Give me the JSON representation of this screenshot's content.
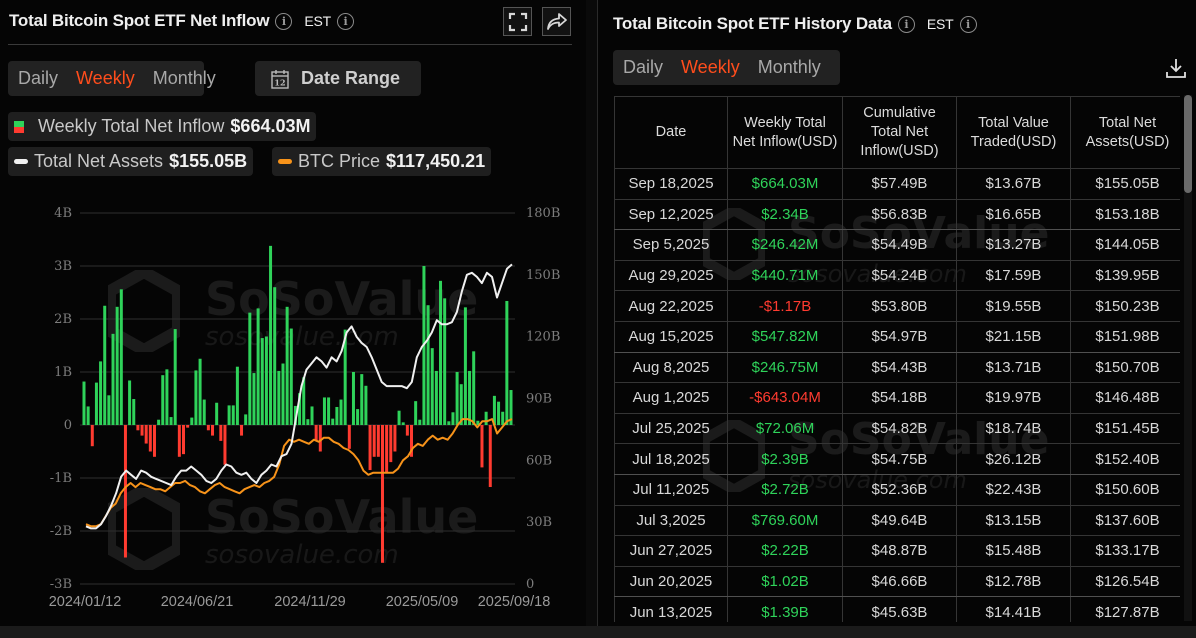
{
  "left_panel": {
    "title": "Total Bitcoin Spot ETF Net Inflow",
    "timezone": "EST",
    "icons": {
      "info": "info-icon",
      "fullscreen": "fullscreen-icon",
      "share": "share-icon"
    },
    "period_tabs": [
      {
        "label": "Daily",
        "active": false
      },
      {
        "label": "Weekly",
        "active": true
      },
      {
        "label": "Monthly",
        "active": false
      }
    ],
    "date_range": {
      "label": "Date Range",
      "icon": "calendar-icon",
      "icon_text": "12"
    },
    "legend": {
      "inflow": {
        "label": "Weekly Total Net Inflow",
        "value": "$664.03M"
      },
      "assets": {
        "label": "Total Net Assets",
        "value": "$155.05B",
        "color": "#f5f5f5"
      },
      "btc": {
        "label": "BTC Price",
        "value": "$117,450.21",
        "color": "#f7931a"
      }
    },
    "watermark": {
      "brand": "SoSoValue",
      "url": "sosovalue.com"
    }
  },
  "chart_data": {
    "type": "bar",
    "title": "Total Bitcoin Spot ETF Net Inflow",
    "xlabel": "",
    "ylabel_left": "Weekly Total Net Inflow (USD)",
    "ylabel_right": "Total Net Assets (USD)",
    "left_ticks": [
      "4B",
      "3B",
      "2B",
      "1B",
      "0",
      "-1B",
      "-2B",
      "-3B"
    ],
    "right_ticks": [
      "180B",
      "150B",
      "120B",
      "90B",
      "60B",
      "30B",
      "0"
    ],
    "x_ticks": [
      "2024/01/12",
      "2024/06/21",
      "2024/11/29",
      "2025/05/09",
      "2025/09/18"
    ],
    "ylim_left": [
      -3,
      4
    ],
    "ylim_right": [
      0,
      180
    ],
    "grid": true,
    "colors": {
      "positive": "#2fd35a",
      "negative": "#ff3b30",
      "assets_line": "#f0f0f0",
      "btc_line": "#f7931a"
    },
    "series": [
      {
        "name": "Weekly Total Net Inflow (B USD)",
        "type": "bar",
        "values": [
          0.82,
          0.35,
          -0.4,
          0.8,
          1.2,
          2.25,
          0.56,
          1.72,
          2.23,
          2.56,
          -2.5,
          0.84,
          0.49,
          -0.1,
          -0.2,
          -0.35,
          -0.5,
          -0.6,
          0.1,
          0.94,
          1.05,
          0.15,
          1.81,
          -0.6,
          -0.55,
          -0.05,
          0.14,
          1.03,
          1.25,
          0.48,
          -0.1,
          -0.2,
          0.42,
          -0.3,
          -0.75,
          0.37,
          0.37,
          1.1,
          -0.2,
          0.2,
          2.12,
          0.98,
          2.2,
          1.64,
          1.67,
          3.38,
          2.6,
          1.02,
          1.16,
          2.23,
          1.82,
          0.36,
          0.6,
          0.9,
          0.11,
          0.35,
          -0.3,
          -0.5,
          0.52,
          0.52,
          0.12,
          0.34,
          0.48,
          1.8,
          -0.45,
          1.0,
          0.3,
          0.96,
          0.74,
          -0.85,
          -0.6,
          -0.6,
          -2.6,
          -0.9,
          -0.7,
          -0.5,
          0.27,
          0.05,
          -0.2,
          -0.6,
          0.45,
          0.1,
          3.0,
          2.26,
          1.45,
          1.02,
          2.72,
          2.39,
          0.07,
          0.24,
          1.0,
          0.77,
          2.22,
          1.02,
          1.39,
          0.08,
          -0.8,
          0.25,
          -1.17,
          0.55,
          0.44,
          0.25,
          2.34,
          0.66
        ]
      },
      {
        "name": "Total Net Assets (B USD)",
        "type": "line",
        "axis": "right",
        "values": [
          28,
          27,
          27,
          29,
          33,
          38,
          44,
          52,
          55,
          53,
          51,
          55,
          54,
          52,
          51,
          50,
          49,
          48,
          52,
          55,
          55,
          57,
          55,
          53,
          50,
          49,
          51,
          55,
          58,
          57,
          54,
          53,
          54,
          51,
          49,
          53,
          55,
          58,
          57,
          62,
          63,
          68,
          82,
          96,
          104,
          107,
          110,
          108,
          105,
          110,
          108,
          113,
          122,
          125,
          120,
          117,
          115,
          110,
          104,
          98,
          96,
          96,
          96,
          96,
          95,
          98,
          110,
          115,
          118,
          122,
          128,
          126,
          126,
          127,
          132,
          142,
          150,
          151,
          149,
          146,
          151,
          149,
          139,
          146,
          153,
          155.05
        ]
      },
      {
        "name": "BTC Price (scaled)",
        "type": "line",
        "axis": "right",
        "values": [
          29,
          28,
          28,
          29,
          33,
          37,
          39,
          44,
          47,
          49,
          47,
          49,
          48,
          47,
          46,
          46,
          45,
          47,
          49,
          49,
          50,
          48,
          47,
          45,
          44,
          46,
          48,
          49,
          47,
          46,
          45,
          44,
          46,
          47,
          48,
          47,
          49,
          50,
          52,
          58,
          67,
          70,
          69,
          70,
          69,
          68,
          70,
          69,
          71,
          71,
          69,
          68,
          66,
          65,
          63,
          60,
          55,
          53,
          54,
          54,
          54,
          54,
          54,
          56,
          60,
          62,
          66,
          68,
          67,
          70,
          72,
          70,
          71,
          70,
          73,
          77,
          80,
          80,
          79,
          76,
          79,
          79,
          80,
          73,
          76,
          79,
          80
        ]
      }
    ]
  },
  "right_panel": {
    "title": "Total Bitcoin Spot ETF History Data",
    "timezone": "EST",
    "period_tabs": [
      {
        "label": "Daily",
        "active": false
      },
      {
        "label": "Weekly",
        "active": true
      },
      {
        "label": "Monthly",
        "active": false
      }
    ],
    "download_icon": "download-icon",
    "table": {
      "headers": [
        "Date",
        "Weekly Total Net Inflow(USD)",
        "Cumulative Total Net Inflow(USD)",
        "Total Value Traded(USD)",
        "Total Net Assets(USD)"
      ],
      "rows": [
        {
          "date": "Sep 18,2025",
          "inflow": "$664.03M",
          "dir": "pos",
          "cumulative": "$57.49B",
          "traded": "$13.67B",
          "assets": "$155.05B"
        },
        {
          "date": "Sep 12,2025",
          "inflow": "$2.34B",
          "dir": "pos",
          "cumulative": "$56.83B",
          "traded": "$16.65B",
          "assets": "$153.18B"
        },
        {
          "date": "Sep 5,2025",
          "inflow": "$246.42M",
          "dir": "pos",
          "cumulative": "$54.49B",
          "traded": "$13.27B",
          "assets": "$144.05B"
        },
        {
          "date": "Aug 29,2025",
          "inflow": "$440.71M",
          "dir": "pos",
          "cumulative": "$54.24B",
          "traded": "$17.59B",
          "assets": "$139.95B"
        },
        {
          "date": "Aug 22,2025",
          "inflow": "-$1.17B",
          "dir": "neg",
          "cumulative": "$53.80B",
          "traded": "$19.55B",
          "assets": "$150.23B"
        },
        {
          "date": "Aug 15,2025",
          "inflow": "$547.82M",
          "dir": "pos",
          "cumulative": "$54.97B",
          "traded": "$21.15B",
          "assets": "$151.98B"
        },
        {
          "date": "Aug 8,2025",
          "inflow": "$246.75M",
          "dir": "pos",
          "cumulative": "$54.43B",
          "traded": "$13.71B",
          "assets": "$150.70B"
        },
        {
          "date": "Aug 1,2025",
          "inflow": "-$643.04M",
          "dir": "neg",
          "cumulative": "$54.18B",
          "traded": "$19.97B",
          "assets": "$146.48B"
        },
        {
          "date": "Jul 25,2025",
          "inflow": "$72.06M",
          "dir": "pos",
          "cumulative": "$54.82B",
          "traded": "$18.74B",
          "assets": "$151.45B"
        },
        {
          "date": "Jul 18,2025",
          "inflow": "$2.39B",
          "dir": "pos",
          "cumulative": "$54.75B",
          "traded": "$26.12B",
          "assets": "$152.40B"
        },
        {
          "date": "Jul 11,2025",
          "inflow": "$2.72B",
          "dir": "pos",
          "cumulative": "$52.36B",
          "traded": "$22.43B",
          "assets": "$150.60B"
        },
        {
          "date": "Jul 3,2025",
          "inflow": "$769.60M",
          "dir": "pos",
          "cumulative": "$49.64B",
          "traded": "$13.15B",
          "assets": "$137.60B"
        },
        {
          "date": "Jun 27,2025",
          "inflow": "$2.22B",
          "dir": "pos",
          "cumulative": "$48.87B",
          "traded": "$15.48B",
          "assets": "$133.17B"
        },
        {
          "date": "Jun 20,2025",
          "inflow": "$1.02B",
          "dir": "pos",
          "cumulative": "$46.66B",
          "traded": "$12.78B",
          "assets": "$126.54B"
        },
        {
          "date": "Jun 13,2025",
          "inflow": "$1.39B",
          "dir": "pos",
          "cumulative": "$45.63B",
          "traded": "$14.41B",
          "assets": "$127.87B"
        }
      ]
    }
  }
}
